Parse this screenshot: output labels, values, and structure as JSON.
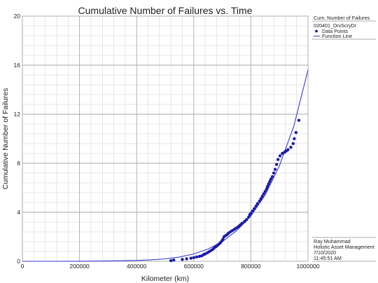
{
  "chart_data": {
    "type": "scatter",
    "title": "Cumulative Number of Failures vs. Time",
    "xlabel": "Kilometer (km)",
    "ylabel": "Cumulative Number of Failures",
    "xlim": [
      0,
      1000000
    ],
    "ylim": [
      0,
      20
    ],
    "x_ticks": [
      0,
      200000,
      400000,
      600000,
      800000,
      1000000
    ],
    "x_tick_labels": [
      "0",
      "200000",
      "400000",
      "600000",
      "800000",
      "1000000"
    ],
    "y_ticks": [
      0,
      4,
      8,
      12,
      16,
      20
    ],
    "y_tick_labels": [
      "0",
      "4",
      "8",
      "12",
      "16",
      "20"
    ],
    "grid": true,
    "legend_position": "right",
    "legend": {
      "header": "Cum. Number of Failures",
      "dataset": "020401_DrvScryDr",
      "items": [
        "Data Points",
        "Function Line"
      ]
    },
    "footer_lines": [
      "Ray  Muhammad",
      "Holistic Asset Management",
      "7/10/2020",
      "11:45:51 AM"
    ],
    "colors": {
      "points": "#1a1aa8",
      "line": "#3a3ad0",
      "grid": "#cfcfcf"
    },
    "series": [
      {
        "name": "Data Points",
        "kind": "points",
        "x": [
          520000,
          530000,
          560000,
          575000,
          590000,
          600000,
          610000,
          620000,
          628000,
          635000,
          640000,
          648000,
          655000,
          662000,
          668000,
          672000,
          678000,
          683000,
          688000,
          693000,
          698000,
          702000,
          706000,
          712000,
          718000,
          722000,
          728000,
          735000,
          742000,
          748000,
          755000,
          760000,
          765000,
          770000,
          778000,
          785000,
          792000,
          796000,
          800000,
          806000,
          812000,
          818000,
          823000,
          830000,
          835000,
          840000,
          845000,
          850000,
          855000,
          858000,
          862000,
          866000,
          870000,
          875000,
          880000,
          885000,
          890000,
          895000,
          902000,
          910000,
          918000,
          924000,
          930000,
          940000,
          948000,
          952000,
          958000,
          968000
        ],
        "y": [
          0.05,
          0.1,
          0.15,
          0.2,
          0.25,
          0.3,
          0.35,
          0.4,
          0.45,
          0.55,
          0.6,
          0.7,
          0.8,
          0.9,
          1.0,
          1.1,
          1.2,
          1.3,
          1.4,
          1.5,
          1.65,
          1.8,
          2.0,
          2.1,
          2.2,
          2.3,
          2.4,
          2.5,
          2.6,
          2.7,
          2.8,
          2.9,
          3.0,
          3.1,
          3.25,
          3.4,
          3.6,
          3.8,
          3.9,
          4.1,
          4.3,
          4.5,
          4.7,
          4.9,
          5.1,
          5.3,
          5.5,
          5.7,
          5.9,
          6.1,
          6.3,
          6.5,
          6.7,
          6.9,
          7.2,
          7.5,
          7.9,
          8.3,
          8.6,
          8.8,
          8.9,
          9.0,
          9.1,
          9.3,
          9.6,
          10.0,
          10.5,
          11.5
        ]
      },
      {
        "name": "Function Line",
        "kind": "line",
        "x": [
          0,
          100000,
          200000,
          300000,
          400000,
          450000,
          500000,
          550000,
          600000,
          650000,
          700000,
          750000,
          800000,
          850000,
          900000,
          950000,
          1000000
        ],
        "y": [
          0,
          0.0005,
          0.005,
          0.02,
          0.07,
          0.12,
          0.2,
          0.35,
          0.6,
          1.0,
          1.6,
          2.5,
          3.7,
          5.4,
          7.8,
          11.0,
          15.6
        ]
      }
    ]
  }
}
